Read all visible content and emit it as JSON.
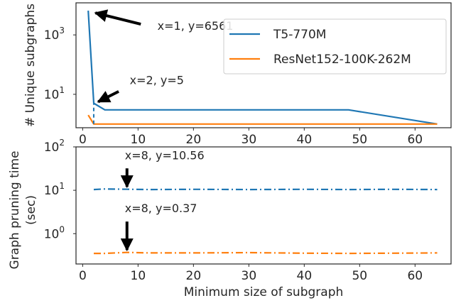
{
  "colors": {
    "t5": "#1f77b4",
    "resnet": "#ff7f0e",
    "axis": "#262626",
    "arrow": "#000000"
  },
  "chart_data": [
    {
      "type": "line",
      "ylabel": "# Unique subgraphs",
      "yscale": "log",
      "xlim": [
        -1.2,
        66.5
      ],
      "ylim": [
        0.75,
        12000
      ],
      "xticks": [
        0,
        10,
        20,
        30,
        40,
        50,
        60
      ],
      "yticks": [
        {
          "value": 1000,
          "label": "10",
          "exp": "3"
        },
        {
          "value": 10,
          "label": "10",
          "exp": "1"
        }
      ],
      "legend": {
        "placement": "top-right",
        "entries": [
          "T5-770M",
          "ResNet152-100K-262M"
        ]
      },
      "series": [
        {
          "name": "T5-770M",
          "color_key": "t5",
          "style": "solid",
          "points": [
            [
              1,
              6561
            ],
            [
              2,
              5
            ],
            [
              4,
              3
            ],
            [
              48,
              3
            ],
            [
              64,
              1
            ]
          ]
        },
        {
          "name": "ResNet152-100K-262M",
          "color_key": "resnet",
          "style": "solid",
          "points": [
            [
              1,
              2
            ],
            [
              2,
              1
            ],
            [
              64,
              1
            ]
          ]
        }
      ],
      "connector": {
        "color_key": "t5",
        "style": "dashed",
        "points": [
          [
            2,
            1
          ],
          [
            2,
            5
          ]
        ]
      },
      "annotations": [
        {
          "text": "x=1, y=6561",
          "label_x": 13.5,
          "label_y": 1500,
          "arrow_from_x": 10.5,
          "arrow_from_y": 2300,
          "arrow_to_x": 2.3,
          "arrow_to_y": 5500
        },
        {
          "text": "x=2, y=5",
          "label_x": 8.5,
          "label_y": 22,
          "arrow_from_x": 6.5,
          "arrow_from_y": 12.5,
          "arrow_to_x": 2.8,
          "arrow_to_y": 5.6
        }
      ]
    },
    {
      "type": "line",
      "ylabel": [
        "Graph pruning time",
        "(sec)"
      ],
      "xlabel": "Minimum size of subgraph",
      "yscale": "log",
      "xlim": [
        -1.2,
        66.5
      ],
      "ylim": [
        0.2,
        100
      ],
      "xticks": [
        0,
        10,
        20,
        30,
        40,
        50,
        60
      ],
      "yticks": [
        {
          "value": 100,
          "label": "10",
          "exp": "2"
        },
        {
          "value": 10,
          "label": "10",
          "exp": "1"
        },
        {
          "value": 1,
          "label": "10",
          "exp": "0"
        }
      ],
      "series": [
        {
          "name": "T5-770M",
          "color_key": "t5",
          "style": "dashdot",
          "points": [
            [
              2,
              10.4
            ],
            [
              4,
              10.7
            ],
            [
              8,
              10.56
            ],
            [
              12,
              10.4
            ],
            [
              20,
              10.5
            ],
            [
              30,
              10.4
            ],
            [
              40,
              10.5
            ],
            [
              48,
              10.4
            ],
            [
              56,
              10.5
            ],
            [
              64,
              10.4
            ]
          ]
        },
        {
          "name": "ResNet152-100K-262M",
          "color_key": "resnet",
          "style": "dashdot",
          "points": [
            [
              2,
              0.35
            ],
            [
              4,
              0.35
            ],
            [
              8,
              0.37
            ],
            [
              12,
              0.36
            ],
            [
              20,
              0.36
            ],
            [
              30,
              0.365
            ],
            [
              40,
              0.355
            ],
            [
              48,
              0.35
            ],
            [
              56,
              0.355
            ],
            [
              64,
              0.36
            ]
          ]
        }
      ],
      "annotations": [
        {
          "text": "x=8, y=10.56",
          "label_x": 8,
          "label_y": 52,
          "arrow_from_x": 8,
          "arrow_from_y": 32,
          "arrow_to_x": 8,
          "arrow_to_y": 12
        },
        {
          "text": "x=8, y=0.37",
          "label_x": 8,
          "label_y": 3.1,
          "arrow_from_x": 8,
          "arrow_from_y": 1.9,
          "arrow_to_x": 8,
          "arrow_to_y": 0.42
        }
      ]
    }
  ]
}
